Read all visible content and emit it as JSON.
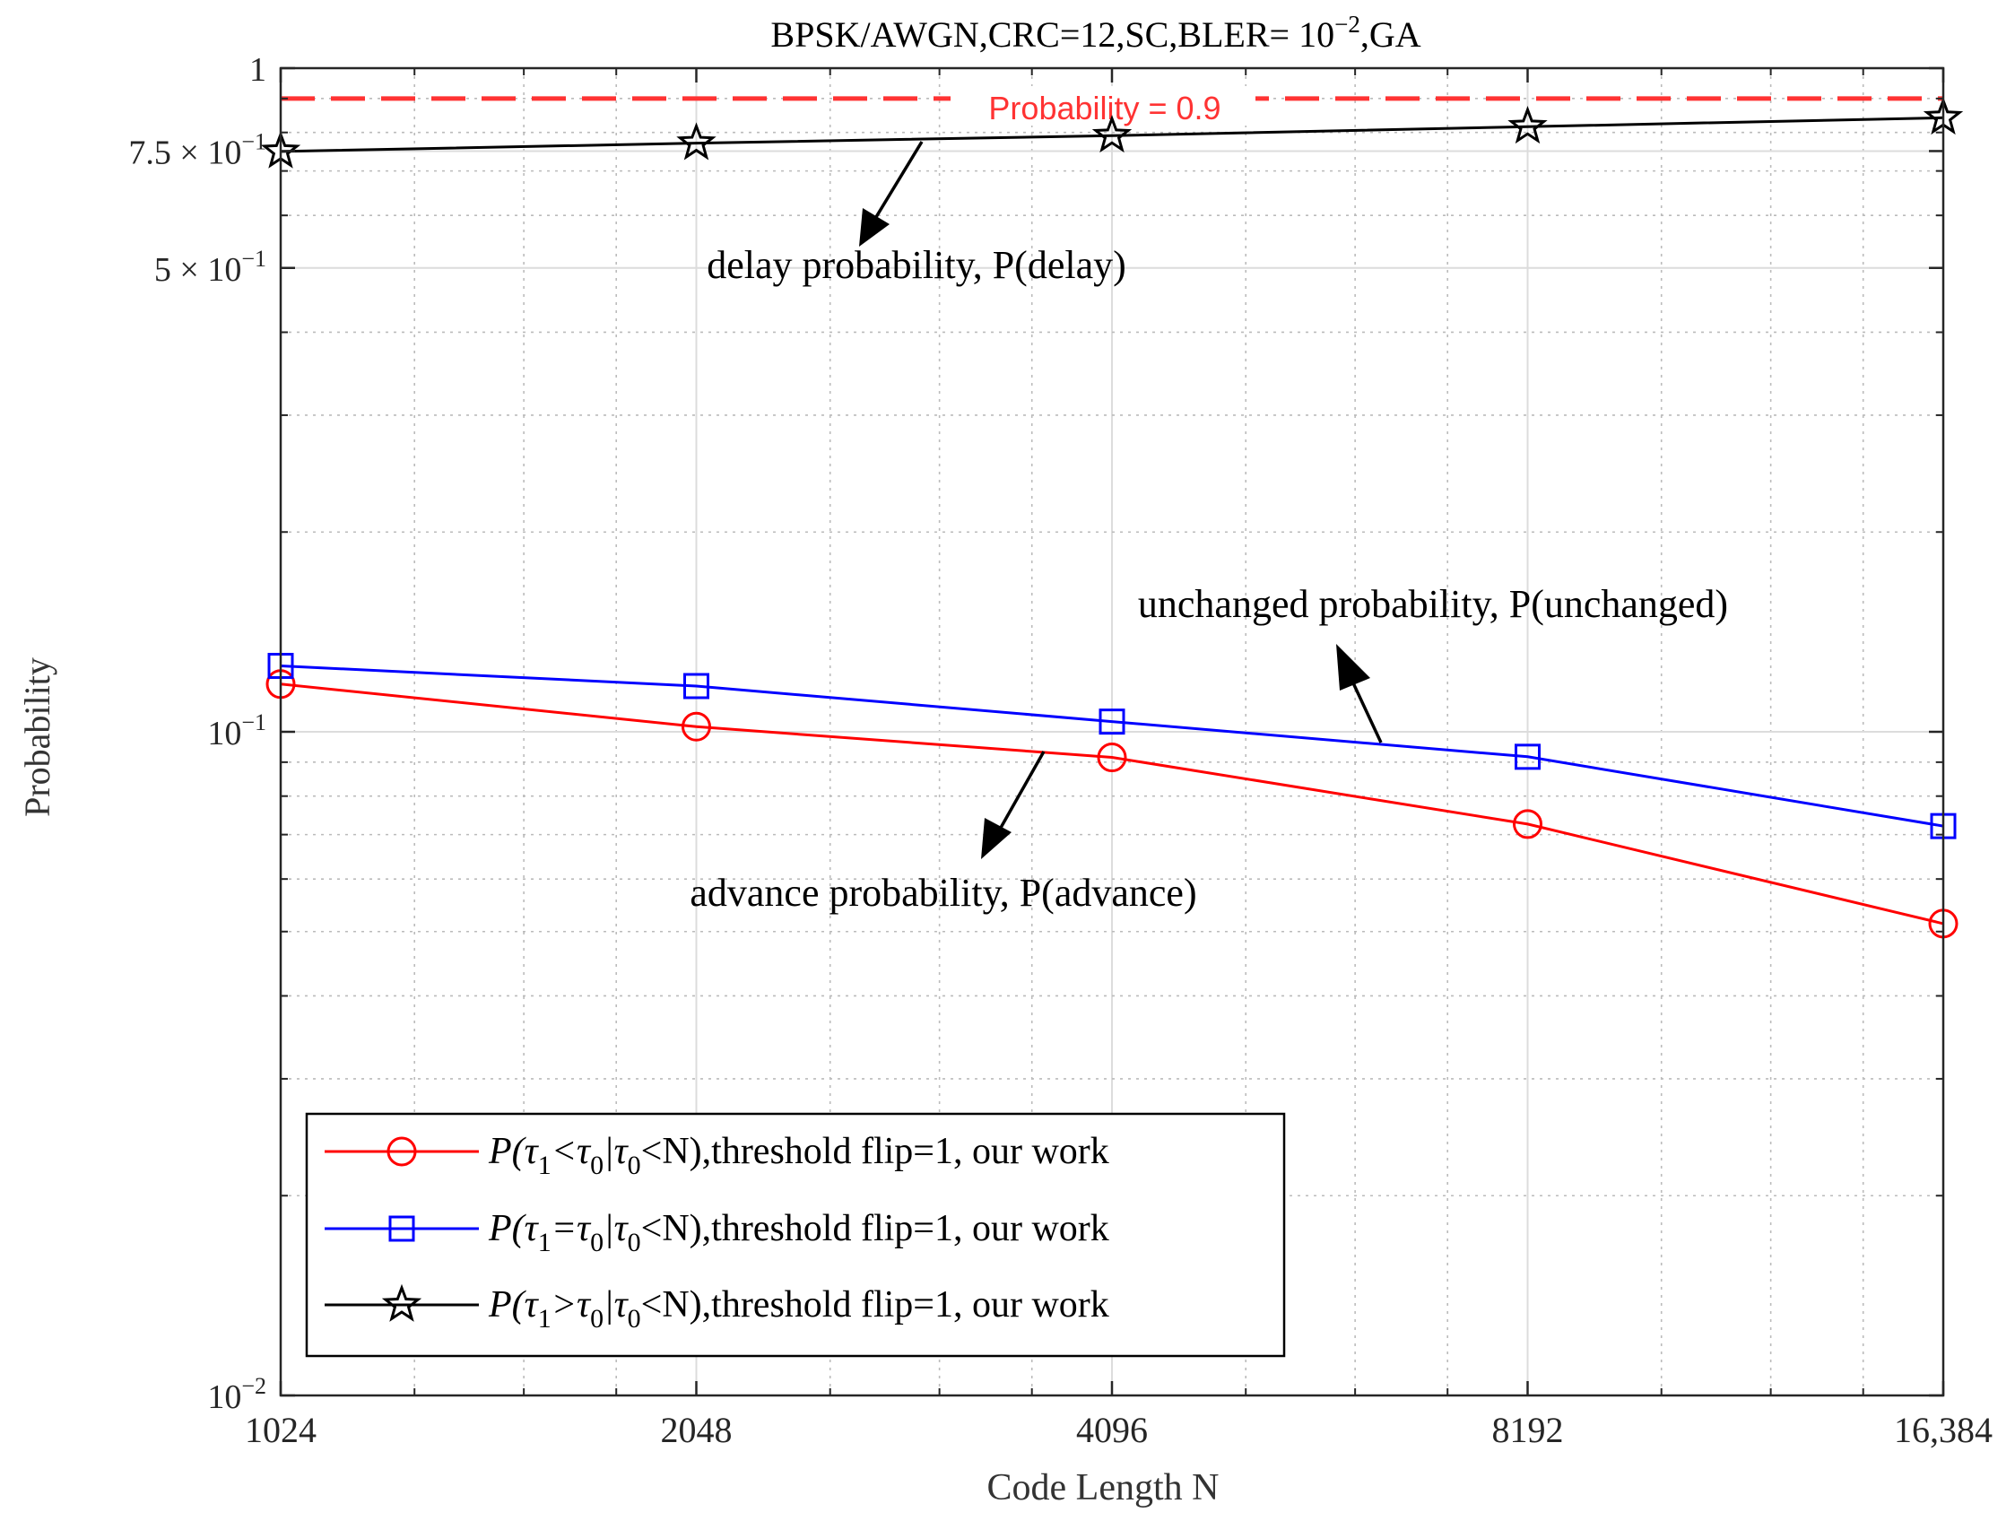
{
  "chart_data": {
    "type": "line",
    "title": {
      "prefix": "BPSK/AWGN,CRC=12,SC,BLER= 10",
      "superscript": "−2",
      "suffix": ",GA"
    },
    "xlabel": "Code Length N",
    "ylabel": "Probability",
    "xscale": "log2",
    "yscale": "log10",
    "xlim": [
      1024,
      16384
    ],
    "ylim": [
      0.01,
      1
    ],
    "x": [
      1024,
      2048,
      4096,
      8192,
      16384
    ],
    "x_tick_labels": [
      "1024",
      "2048",
      "4096",
      "8192",
      "16,384"
    ],
    "y_ticks": [
      {
        "value": 0.01,
        "base": "10",
        "exp": "−2"
      },
      {
        "value": 0.1,
        "base": "10",
        "exp": "−1"
      },
      {
        "value": 0.5,
        "base": "5 × 10",
        "exp": "−1"
      },
      {
        "value": 0.75,
        "base": "7.5 × 10",
        "exp": "−1"
      },
      {
        "value": 1,
        "base": "1",
        "exp": ""
      }
    ],
    "grid": true,
    "reference_line": {
      "value": 0.9,
      "label": "Probability = 0.9",
      "color": "#ff3333",
      "style": "dashed"
    },
    "series": [
      {
        "name": "advance",
        "legend": {
          "a": "P(τ",
          "s1": "1",
          "b": "<τ",
          "s2": "0",
          "c": "|τ",
          "s3": "0",
          "d": "<N),threshold flip=1, our work"
        },
        "values": [
          0.118,
          0.1018,
          0.0915,
          0.0726,
          0.0514
        ],
        "color": "#ff0000",
        "marker": "circle"
      },
      {
        "name": "unchanged",
        "legend": {
          "a": "P(τ",
          "s1": "1",
          "b": "=τ",
          "s2": "0",
          "c": "|τ",
          "s3": "0",
          "d": "<N),threshold flip=1, our work"
        },
        "values": [
          0.1257,
          0.1172,
          0.1036,
          0.0917,
          0.0721
        ],
        "color": "#0000ff",
        "marker": "square"
      },
      {
        "name": "delay",
        "legend": {
          "a": "P(τ",
          "s1": "1",
          "b": ">τ",
          "s2": "0",
          "c": "|τ",
          "s3": "0",
          "d": "<N),threshold flip=1, our work"
        },
        "values": [
          0.749,
          0.771,
          0.791,
          0.816,
          0.842
        ],
        "color": "#000000",
        "marker": "star"
      }
    ],
    "annotations": [
      {
        "id": "delay",
        "text": "delay probability, P(delay)"
      },
      {
        "id": "unchanged",
        "text": "unchanged probability, P(unchanged)"
      },
      {
        "id": "advance",
        "text": "advance probability, P(advance)"
      }
    ],
    "legend_location": "bottom-left"
  }
}
